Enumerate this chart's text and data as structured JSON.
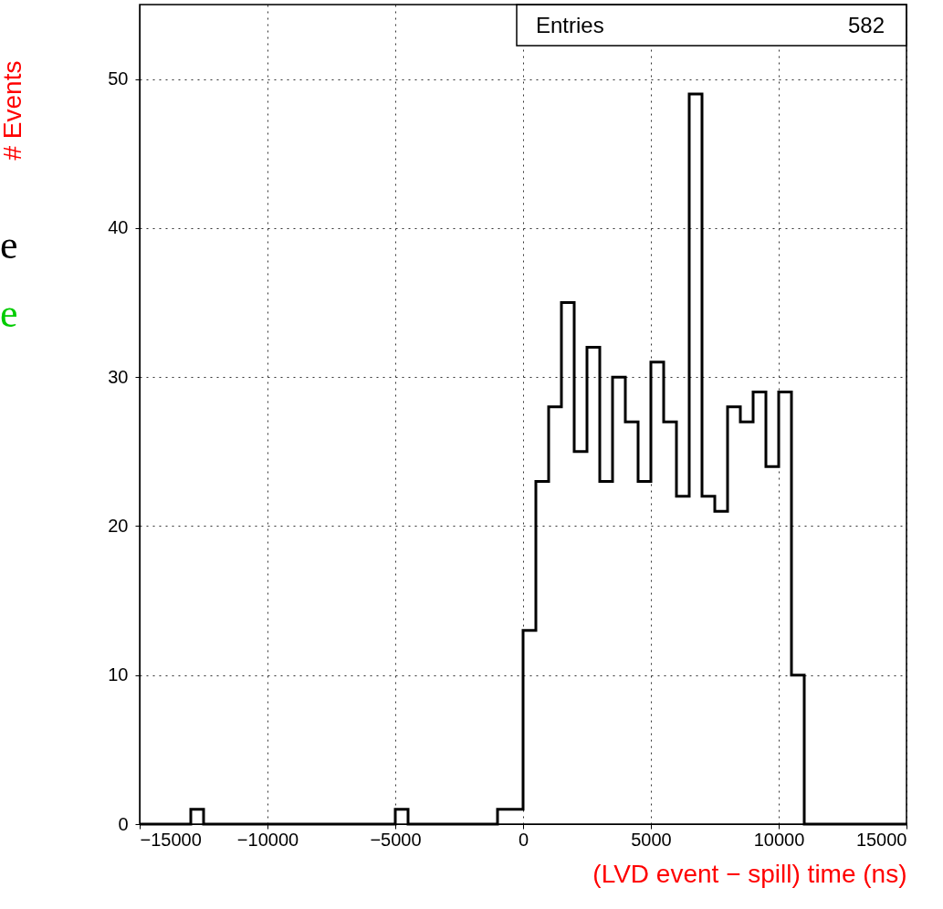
{
  "chart_data": {
    "type": "histogram",
    "xlabel": "(LVD event − spill) time (ns)",
    "ylabel": "# Events",
    "bins": [
      -15000,
      -14500,
      -14000,
      -13500,
      -13000,
      -12500,
      -12000,
      -11500,
      -11000,
      -10500,
      -10000,
      -9500,
      -9000,
      -8500,
      -8000,
      -7500,
      -7000,
      -6500,
      -6000,
      -5500,
      -5000,
      -4500,
      -4000,
      -3500,
      -3000,
      -2500,
      -2000,
      -1500,
      -1000,
      -500,
      0,
      500,
      1000,
      1500,
      2000,
      2500,
      3000,
      3500,
      4000,
      4500,
      5000,
      5500,
      6000,
      6500,
      7000,
      7500,
      8000,
      8500,
      9000,
      9500,
      10000,
      10500,
      11000,
      11500,
      12000,
      12500,
      13000,
      13500,
      14000,
      14500,
      15000
    ],
    "values": [
      0,
      0,
      0,
      0,
      1,
      0,
      0,
      0,
      0,
      0,
      0,
      0,
      0,
      0,
      0,
      0,
      0,
      0,
      0,
      0,
      1,
      0,
      0,
      0,
      0,
      0,
      0,
      0,
      1,
      1,
      13,
      23,
      28,
      35,
      25,
      32,
      23,
      30,
      27,
      23,
      31,
      27,
      22,
      49,
      22,
      21,
      28,
      27,
      29,
      24,
      29,
      10,
      0,
      0,
      0,
      0,
      0,
      0,
      0,
      0
    ],
    "color": "#000000",
    "xlim": [
      -15000,
      15000
    ],
    "xticks": [
      -15000,
      -10000,
      -5000,
      0,
      5000,
      10000,
      15000
    ],
    "ylim": [
      0,
      55
    ],
    "yticks": [
      0,
      10,
      20,
      30,
      40,
      50
    ],
    "grid": true,
    "annotations": [
      "Entries",
      "582",
      "e",
      "e"
    ]
  }
}
